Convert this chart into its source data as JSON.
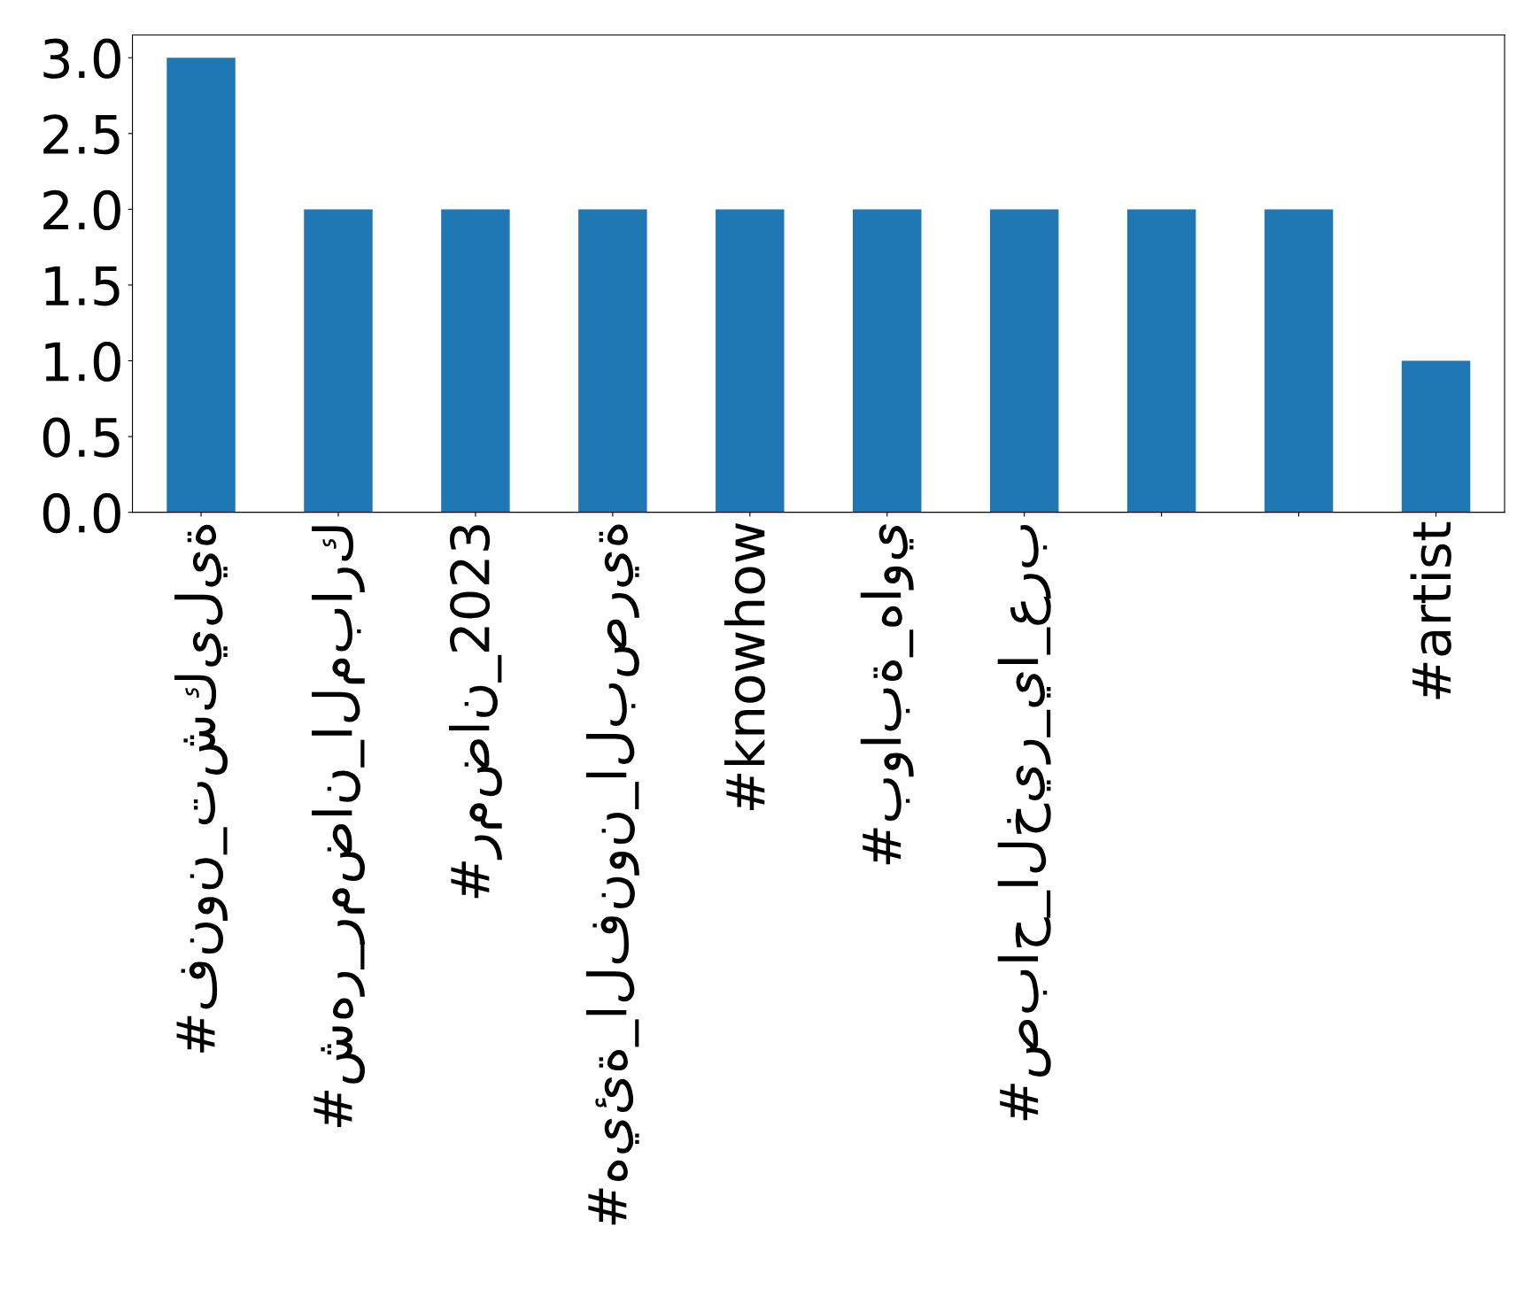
{
  "chart_data": {
    "type": "bar",
    "categories": [
      "#فنون_تشكيلية",
      "#شهر_رمضان_المبارك",
      "#رمضان_2023",
      "#هيئة_الفنون_البصرية",
      "#knowhow",
      "#بوابة_هاوي",
      "#صباح_الخير_يا_عرب",
      null,
      null,
      "#artist"
    ],
    "values": [
      3,
      2,
      2,
      2,
      2,
      2,
      2,
      2,
      2,
      1
    ],
    "color": "#1f77b4",
    "ylim": [
      0,
      3.15
    ],
    "yticks": [
      {
        "value": 0,
        "label": "0.0"
      },
      {
        "value": 0.5,
        "label": "0.5"
      },
      {
        "value": 1,
        "label": "1.0"
      },
      {
        "value": 1.5,
        "label": "1.5"
      },
      {
        "value": 2,
        "label": "2.0"
      },
      {
        "value": 2.5,
        "label": "2.5"
      },
      {
        "value": 3,
        "label": "3.0"
      }
    ],
    "grid": false,
    "legend": false
  }
}
